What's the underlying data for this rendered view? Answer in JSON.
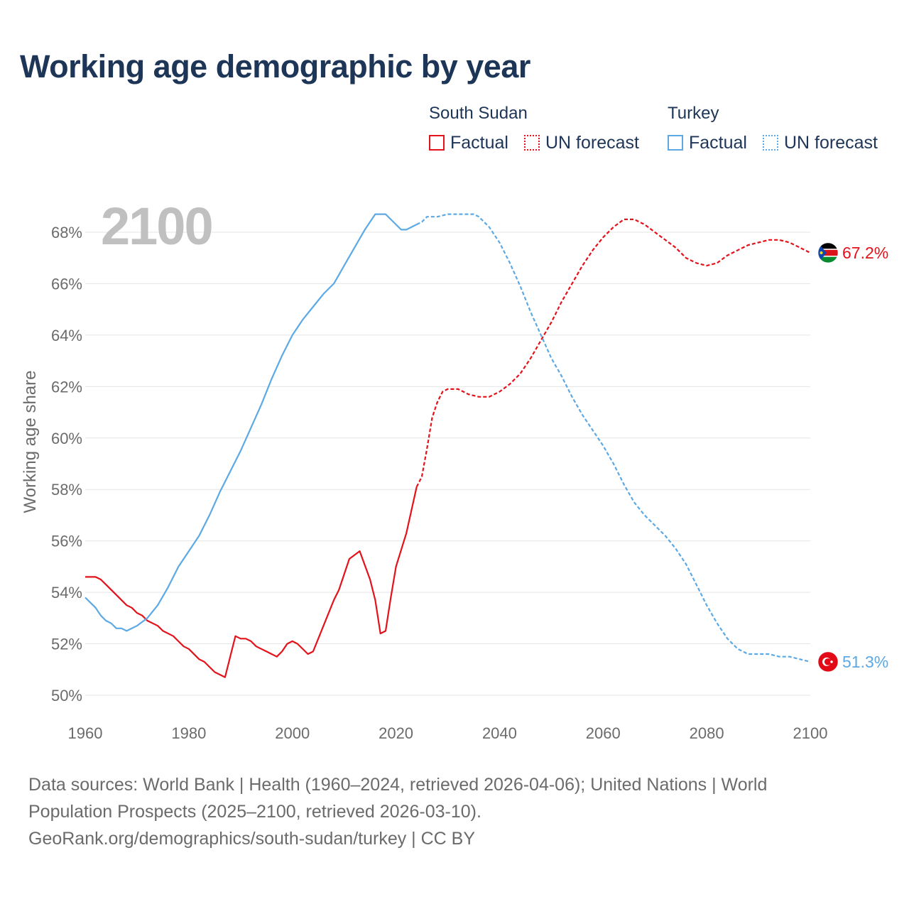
{
  "title": "Working age demographic by year",
  "legend": {
    "groups": [
      {
        "name": "South Sudan",
        "color": "#e3121b",
        "factual_label": "Factual",
        "forecast_label": "UN forecast"
      },
      {
        "name": "Turkey",
        "color": "#5ca9e4",
        "factual_label": "Factual",
        "forecast_label": "UN forecast"
      }
    ]
  },
  "footer": {
    "line1": "Data sources: World Bank | Health (1960–2024, retrieved 2026-04-06); United Nations | World",
    "line2": "Population Prospects (2025–2100, retrieved 2026-03-10).",
    "line3": "GeoRank.org/demographics/south-sudan/turkey | CC BY"
  },
  "chart_data": {
    "type": "line",
    "title": "Working age demographic by year",
    "year_label": "2100",
    "xlabel": "",
    "ylabel": "Working age share",
    "xlim": [
      1960,
      2100
    ],
    "ylim": [
      50,
      68.8
    ],
    "xticks": [
      1960,
      1980,
      2000,
      2020,
      2040,
      2060,
      2080,
      2100
    ],
    "yticks": [
      50,
      52,
      54,
      56,
      58,
      60,
      62,
      64,
      66,
      68
    ],
    "ytick_suffix": "%",
    "grid": true,
    "forecast_start": 2024,
    "series": [
      {
        "name": "South Sudan",
        "color": "#e3121b",
        "end_label": "67.2%",
        "flag": "south-sudan-flag-icon",
        "x": [
          1960,
          1962,
          1963,
          1964,
          1966,
          1968,
          1969,
          1970,
          1971,
          1972,
          1974,
          1975,
          1977,
          1979,
          1980,
          1982,
          1983,
          1985,
          1987,
          1989,
          1990,
          1991,
          1992,
          1993,
          1995,
          1997,
          1998,
          1999,
          2000,
          2001,
          2003,
          2004,
          2006,
          2008,
          2009,
          2011,
          2013,
          2015,
          2016,
          2017,
          2018,
          2019,
          2020,
          2022,
          2024,
          2025,
          2026,
          2027,
          2028,
          2029,
          2030,
          2032,
          2034,
          2036,
          2038,
          2040,
          2042,
          2044,
          2046,
          2048,
          2050,
          2052,
          2054,
          2056,
          2058,
          2060,
          2062,
          2064,
          2066,
          2068,
          2070,
          2072,
          2074,
          2076,
          2078,
          2080,
          2082,
          2084,
          2086,
          2088,
          2090,
          2092,
          2094,
          2096,
          2098,
          2100
        ],
        "y": [
          54.6,
          54.6,
          54.5,
          54.3,
          53.9,
          53.5,
          53.4,
          53.2,
          53.1,
          52.9,
          52.7,
          52.5,
          52.3,
          51.9,
          51.8,
          51.4,
          51.3,
          50.9,
          50.7,
          52.3,
          52.2,
          52.2,
          52.1,
          51.9,
          51.7,
          51.5,
          51.7,
          52.0,
          52.1,
          52.0,
          51.6,
          51.7,
          52.7,
          53.7,
          54.1,
          55.3,
          55.6,
          54.5,
          53.7,
          52.4,
          52.5,
          53.8,
          55.0,
          56.3,
          58.1,
          58.5,
          59.6,
          60.8,
          61.4,
          61.8,
          61.9,
          61.9,
          61.7,
          61.6,
          61.6,
          61.8,
          62.1,
          62.5,
          63.1,
          63.8,
          64.5,
          65.3,
          66.0,
          66.7,
          67.3,
          67.8,
          68.2,
          68.5,
          68.5,
          68.3,
          68.0,
          67.7,
          67.4,
          67.0,
          66.8,
          66.7,
          66.8,
          67.1,
          67.3,
          67.5,
          67.6,
          67.7,
          67.7,
          67.6,
          67.4,
          67.2
        ]
      },
      {
        "name": "Turkey",
        "color": "#5ca9e4",
        "end_label": "51.3%",
        "flag": "turkey-flag-icon",
        "x": [
          1960,
          1962,
          1963,
          1964,
          1965,
          1966,
          1967,
          1968,
          1970,
          1972,
          1974,
          1976,
          1978,
          1980,
          1982,
          1984,
          1986,
          1988,
          1990,
          1992,
          1994,
          1996,
          1998,
          2000,
          2002,
          2004,
          2006,
          2008,
          2010,
          2012,
          2014,
          2015,
          2016,
          2017,
          2018,
          2020,
          2021,
          2022,
          2024,
          2025,
          2026,
          2028,
          2030,
          2032,
          2034,
          2035,
          2036,
          2038,
          2040,
          2042,
          2044,
          2046,
          2048,
          2050,
          2052,
          2054,
          2056,
          2058,
          2060,
          2062,
          2064,
          2066,
          2068,
          2070,
          2072,
          2074,
          2076,
          2078,
          2080,
          2082,
          2084,
          2086,
          2088,
          2090,
          2092,
          2094,
          2096,
          2098,
          2100
        ],
        "y": [
          53.8,
          53.4,
          53.1,
          52.9,
          52.8,
          52.6,
          52.6,
          52.5,
          52.7,
          53.0,
          53.5,
          54.2,
          55.0,
          55.6,
          56.2,
          57.0,
          57.9,
          58.7,
          59.5,
          60.4,
          61.3,
          62.3,
          63.2,
          64.0,
          64.6,
          65.1,
          65.6,
          66.0,
          66.7,
          67.4,
          68.1,
          68.4,
          68.7,
          68.7,
          68.7,
          68.3,
          68.1,
          68.1,
          68.3,
          68.4,
          68.6,
          68.6,
          68.7,
          68.7,
          68.7,
          68.7,
          68.6,
          68.2,
          67.6,
          66.8,
          65.9,
          64.9,
          64.0,
          63.1,
          62.4,
          61.6,
          60.9,
          60.3,
          59.7,
          59.0,
          58.2,
          57.5,
          57.0,
          56.6,
          56.2,
          55.7,
          55.1,
          54.3,
          53.5,
          52.8,
          52.2,
          51.8,
          51.6,
          51.6,
          51.6,
          51.5,
          51.5,
          51.4,
          51.3
        ]
      }
    ]
  }
}
